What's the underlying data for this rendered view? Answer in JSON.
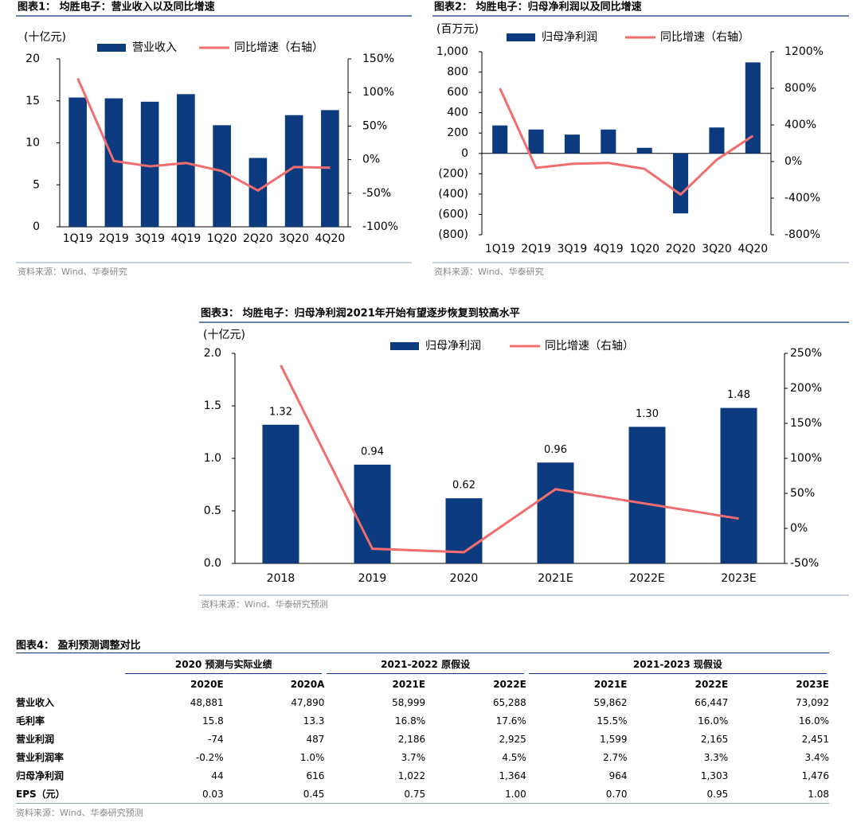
{
  "chart_data": [
    {
      "type": "bar",
      "title": "图表1：  均胜电子：营业收入以及同比增速",
      "y_label": "(十亿元)",
      "source": "资料来源：Wind、华泰研究",
      "categories": [
        "1Q19",
        "2Q19",
        "3Q19",
        "4Q19",
        "1Q20",
        "2Q20",
        "3Q20",
        "4Q20"
      ],
      "series": [
        {
          "name": "营业收入",
          "type": "bar",
          "color": "#0b3a7e",
          "values": [
            15.4,
            15.3,
            14.9,
            15.8,
            12.1,
            8.2,
            13.3,
            13.9
          ]
        },
        {
          "name": "同比增速（右轴）",
          "type": "line",
          "axis": "y2",
          "color": "#f26d6d",
          "values": [
            121,
            -2,
            -10,
            -5,
            -17,
            -46,
            -11,
            -12
          ]
        }
      ],
      "ylim": [
        0,
        20
      ],
      "yticks": [
        0,
        5,
        10,
        15,
        20
      ],
      "y2lim": [
        -100,
        150
      ],
      "y2ticks": [
        {
          "value": -100,
          "label": "-100%"
        },
        {
          "value": -50,
          "label": "-50%"
        },
        {
          "value": 0,
          "label": "0%"
        },
        {
          "value": 50,
          "label": "50%"
        },
        {
          "value": 100,
          "label": "100%"
        },
        {
          "value": 150,
          "label": "150%"
        }
      ]
    },
    {
      "type": "bar",
      "title": "图表2：  均胜电子：归母净利润以及同比增速",
      "y_label": "(百万元)",
      "source": "资料来源：Wind、华泰研究",
      "categories": [
        "1Q19",
        "2Q19",
        "3Q19",
        "4Q19",
        "1Q20",
        "2Q20",
        "3Q20",
        "4Q20"
      ],
      "series": [
        {
          "name": "归母净利润",
          "type": "bar",
          "color": "#0b3a7e",
          "values": [
            275,
            235,
            185,
            235,
            55,
            -590,
            255,
            895
          ]
        },
        {
          "name": "同比增速（右轴）",
          "type": "line",
          "axis": "y2",
          "color": "#f26d6d",
          "values": [
            800,
            -70,
            -25,
            -15,
            -80,
            -360,
            20,
            280
          ]
        }
      ],
      "ylim": [
        -800,
        1000
      ],
      "yticks": [
        {
          "value": -800,
          "label": "(800)"
        },
        {
          "value": -600,
          "label": "(600)"
        },
        {
          "value": -400,
          "label": "(400)"
        },
        {
          "value": -200,
          "label": "(200)"
        },
        0,
        200,
        400,
        600,
        800,
        {
          "value": 1000,
          "label": "1,000"
        }
      ],
      "y2lim": [
        -800,
        1200
      ],
      "y2ticks": [
        {
          "value": -800,
          "label": "-800%"
        },
        {
          "value": -400,
          "label": "-400%"
        },
        {
          "value": 0,
          "label": "0%"
        },
        {
          "value": 400,
          "label": "400%"
        },
        {
          "value": 800,
          "label": "800%"
        },
        {
          "value": 1200,
          "label": "1200%"
        }
      ]
    },
    {
      "type": "bar",
      "title": "图表3：  均胜电子：归母净利润2021年开始有望逐步恢复到较高水平",
      "y_label": "(十亿元)",
      "source": "资料来源：Wind、华泰研究预测",
      "categories": [
        "2018",
        "2019",
        "2020",
        "2021E",
        "2022E",
        "2023E"
      ],
      "series": [
        {
          "name": "归母净利润",
          "type": "bar",
          "color": "#0b3a7e",
          "values": [
            1.32,
            0.94,
            0.62,
            0.96,
            1.3,
            1.48
          ],
          "value_labels": [
            "1.32",
            "0.94",
            "0.62",
            "0.96",
            "1.30",
            "1.48"
          ]
        },
        {
          "name": "同比增速（右轴）",
          "type": "line",
          "axis": "y2",
          "color": "#f26d6d",
          "values": [
            233,
            -29,
            -34,
            56,
            35,
            14
          ]
        }
      ],
      "ylim": [
        0,
        2
      ],
      "yticks": [
        {
          "value": 0,
          "label": "0.0"
        },
        {
          "value": 0.5,
          "label": "0.5"
        },
        {
          "value": 1,
          "label": "1.0"
        },
        {
          "value": 1.5,
          "label": "1.5"
        },
        {
          "value": 2,
          "label": "2.0"
        }
      ],
      "y2lim": [
        -50,
        250
      ],
      "y2ticks": [
        {
          "value": -50,
          "label": "-50%"
        },
        {
          "value": 0,
          "label": "0%"
        },
        {
          "value": 50,
          "label": "50%"
        },
        {
          "value": 100,
          "label": "100%"
        },
        {
          "value": 150,
          "label": "150%"
        },
        {
          "value": 200,
          "label": "200%"
        },
        {
          "value": 250,
          "label": "250%"
        }
      ]
    }
  ],
  "table": {
    "title": "图表4：  盈利预测调整对比",
    "source": "资料来源：Wind、华泰研究预测",
    "groups": [
      {
        "label": "2020 预测与实际业绩",
        "columns": [
          "2020E",
          "2020A"
        ]
      },
      {
        "label": "2021-2022 原假设",
        "columns": [
          "2021E",
          "2022E"
        ]
      },
      {
        "label": "2021-2023 现假设",
        "columns": [
          "2021E",
          "2022E",
          "2023E"
        ]
      }
    ],
    "rows": [
      {
        "label": "营业收入",
        "values": [
          "48,881",
          "47,890",
          "58,999",
          "65,288",
          "59,862",
          "66,447",
          "73,092"
        ]
      },
      {
        "label": "毛利率",
        "values": [
          "15.8",
          "13.3",
          "16.8%",
          "17.6%",
          "15.5%",
          "16.0%",
          "16.0%"
        ]
      },
      {
        "label": "营业利润",
        "values": [
          "-74",
          "487",
          "2,186",
          "2,925",
          "1,599",
          "2,165",
          "2,451"
        ]
      },
      {
        "label": "营业利润率",
        "values": [
          "-0.2%",
          "1.0%",
          "3.7%",
          "4.5%",
          "2.7%",
          "3.3%",
          "3.4%"
        ]
      },
      {
        "label": "归母净利润",
        "values": [
          "44",
          "616",
          "1,022",
          "1,364",
          "964",
          "1,303",
          "1,476"
        ]
      },
      {
        "label": "EPS（元）",
        "values": [
          "0.03",
          "0.45",
          "0.75",
          "1.00",
          "0.70",
          "0.95",
          "1.08"
        ]
      }
    ]
  }
}
